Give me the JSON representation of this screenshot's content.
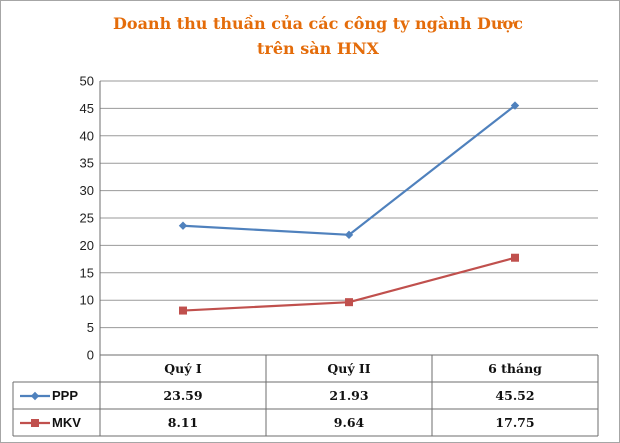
{
  "chart_data": {
    "type": "line",
    "title": [
      "Doanh thu thuần của các công ty ngành Dược",
      "trên sàn HNX"
    ],
    "categories": [
      "Quý I",
      "Quý II",
      "6 tháng"
    ],
    "ylim": [
      0,
      50
    ],
    "yticks": [
      "0",
      "5",
      "10",
      "15",
      "20",
      "25",
      "30",
      "35",
      "40",
      "45",
      "50"
    ],
    "grid": true,
    "legend": "data-table",
    "series": [
      {
        "name": "PPP",
        "values": [
          23.59,
          21.93,
          45.52
        ],
        "labels": [
          "23.59",
          "21.93",
          "45.52"
        ],
        "color": "#4f81bd",
        "marker": "diamond"
      },
      {
        "name": "MKV",
        "values": [
          8.11,
          9.64,
          17.75
        ],
        "labels": [
          "8.11",
          "9.64",
          "17.75"
        ],
        "color": "#c0504d",
        "marker": "square"
      }
    ]
  }
}
